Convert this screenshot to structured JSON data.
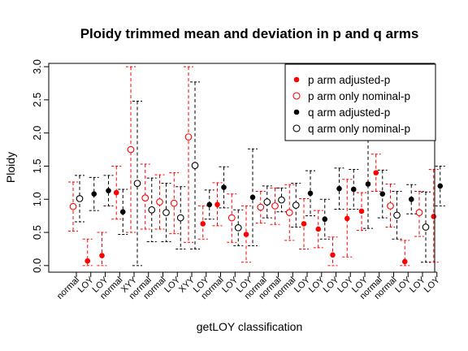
{
  "chart_data": {
    "type": "scatter",
    "title": "Ploidy trimmed mean and deviation in p and q arms",
    "xlabel": "getLOY classification",
    "ylabel": "Ploidy",
    "ylim": [
      -0.1,
      3.05
    ],
    "yticks": [
      "0.0",
      "0.5",
      "1.0",
      "1.5",
      "2.0",
      "2.5",
      "3.0"
    ],
    "categories": [
      "normal",
      "LOY",
      "LOY",
      "normal",
      "XYY",
      "normal",
      "normal",
      "LOY",
      "XYY",
      "LOY",
      "normal",
      "LOY",
      "LOY",
      "normal",
      "normal",
      "normal",
      "LOY",
      "LOY",
      "LOY",
      "LOY",
      "LOY",
      "normal",
      "normal",
      "LOY",
      "LOY",
      "LOY"
    ],
    "legend_position": "top-right",
    "legend": [
      {
        "label": "p arm adjusted-p",
        "color": "#ff0000",
        "marker": "filled"
      },
      {
        "label": "p arm only nominal-p",
        "color": "#ff0000",
        "marker": "open"
      },
      {
        "label": "q arm adjusted-p",
        "color": "#000000",
        "marker": "filled"
      },
      {
        "label": "q arm only nominal-p",
        "color": "#000000",
        "marker": "open"
      }
    ],
    "colors": {
      "p_arm": "#ff0000",
      "q_arm": "#000000"
    },
    "series": [
      {
        "arm": "p",
        "color": "#ff0000",
        "values": [
          0.89,
          0.07,
          0.15,
          1.1,
          1.75,
          1.02,
          0.96,
          0.94,
          1.94,
          0.63,
          0.92,
          0.72,
          0.47,
          0.88,
          0.9,
          0.8,
          0.63,
          0.55,
          0.16,
          0.71,
          0.82,
          1.4,
          0.9,
          0.06,
          0.8,
          0.74
        ],
        "lower": [
          0.52,
          0.0,
          0.0,
          0.7,
          0.5,
          0.55,
          0.55,
          0.48,
          0.35,
          0.4,
          0.6,
          0.35,
          0.05,
          0.64,
          0.62,
          0.38,
          0.25,
          0.27,
          0.0,
          0.13,
          0.53,
          1.12,
          0.58,
          0.0,
          0.44,
          0.05
        ],
        "upper": [
          1.26,
          0.4,
          0.5,
          1.5,
          3.0,
          1.53,
          1.37,
          1.4,
          3.0,
          0.9,
          1.25,
          1.08,
          0.9,
          1.12,
          1.17,
          1.22,
          1.01,
          0.83,
          0.43,
          1.3,
          1.1,
          1.68,
          1.23,
          0.38,
          1.12,
          1.45
        ],
        "filled": [
          false,
          true,
          true,
          true,
          false,
          false,
          false,
          false,
          false,
          true,
          true,
          false,
          true,
          false,
          false,
          false,
          true,
          true,
          true,
          true,
          true,
          true,
          false,
          true,
          false,
          true
        ]
      },
      {
        "arm": "q",
        "color": "#000000",
        "values": [
          1.01,
          1.08,
          1.13,
          0.81,
          1.24,
          0.84,
          0.8,
          0.72,
          1.51,
          0.92,
          1.18,
          0.57,
          1.03,
          0.96,
          0.99,
          0.91,
          1.09,
          0.7,
          1.16,
          1.15,
          1.23,
          1.08,
          0.76,
          1.0,
          0.58,
          1.2
        ],
        "lower": [
          0.66,
          0.83,
          0.9,
          0.47,
          0.0,
          0.36,
          0.36,
          0.25,
          0.25,
          0.7,
          0.87,
          0.3,
          0.3,
          0.72,
          0.81,
          0.58,
          0.75,
          0.4,
          0.85,
          0.85,
          0.56,
          0.72,
          0.4,
          0.78,
          0.05,
          0.9
        ],
        "upper": [
          1.36,
          1.33,
          1.36,
          1.15,
          2.48,
          1.32,
          1.24,
          1.19,
          2.77,
          1.14,
          1.49,
          0.84,
          1.76,
          1.2,
          1.17,
          1.24,
          1.43,
          1.0,
          1.47,
          1.45,
          1.9,
          1.44,
          1.12,
          1.22,
          1.11,
          1.5
        ],
        "filled": [
          false,
          true,
          true,
          true,
          false,
          false,
          false,
          false,
          false,
          true,
          true,
          false,
          true,
          false,
          false,
          false,
          true,
          true,
          true,
          true,
          true,
          true,
          false,
          true,
          false,
          true
        ]
      }
    ]
  }
}
